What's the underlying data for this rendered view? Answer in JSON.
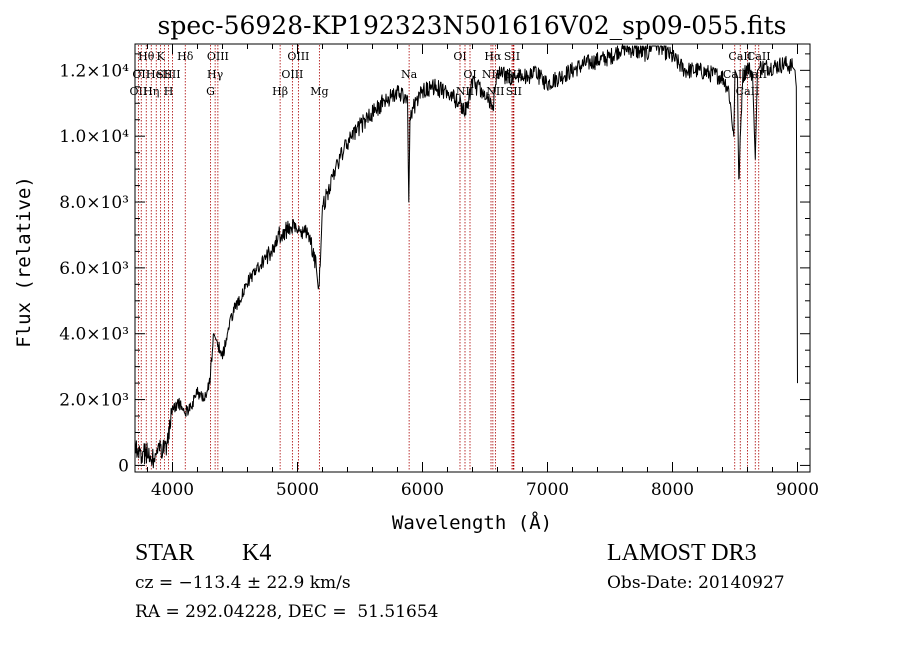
{
  "chart_data": {
    "type": "line",
    "title": "spec-56928-KP192323N501616V02_sp09-055.fits",
    "xlabel": "Wavelength (Å)",
    "ylabel": "Flux (relative)",
    "xlim": [
      3700,
      9100
    ],
    "ylim": [
      -200,
      12800
    ],
    "x_ticks": [
      {
        "value": 4000,
        "label": "4000"
      },
      {
        "value": 5000,
        "label": "5000"
      },
      {
        "value": 6000,
        "label": "6000"
      },
      {
        "value": 7000,
        "label": "7000"
      },
      {
        "value": 8000,
        "label": "8000"
      },
      {
        "value": 9000,
        "label": "9000"
      }
    ],
    "y_ticks": [
      {
        "value": 0,
        "label": "0"
      },
      {
        "value": 2000,
        "label": "2.0×10³"
      },
      {
        "value": 4000,
        "label": "4.0×10³"
      },
      {
        "value": 6000,
        "label": "6.0×10³"
      },
      {
        "value": 8000,
        "label": "8.0×10³"
      },
      {
        "value": 10000,
        "label": "1.0×10⁴"
      },
      {
        "value": 12000,
        "label": "1.2×10⁴"
      }
    ],
    "series": [
      {
        "name": "flux",
        "x": [
          3700,
          3750,
          3800,
          3850,
          3900,
          3950,
          4000,
          4050,
          4100,
          4150,
          4200,
          4250,
          4300,
          4330,
          4350,
          4400,
          4450,
          4500,
          4600,
          4700,
          4800,
          4850,
          4900,
          4950,
          5000,
          5050,
          5100,
          5150,
          5170,
          5200,
          5300,
          5400,
          5500,
          5600,
          5700,
          5800,
          5880,
          5890,
          5900,
          5950,
          6000,
          6100,
          6200,
          6300,
          6350,
          6400,
          6500,
          6560,
          6600,
          6700,
          6800,
          6900,
          7000,
          7100,
          7200,
          7300,
          7400,
          7500,
          7600,
          7700,
          7800,
          7850,
          7900,
          8000,
          8100,
          8200,
          8300,
          8400,
          8450,
          8490,
          8500,
          8520,
          8530,
          8560,
          8600,
          8640,
          8662,
          8680,
          8700,
          8800,
          8900,
          8960,
          8980,
          8990,
          9000
        ],
        "y": [
          500,
          300,
          400,
          150,
          500,
          600,
          1700,
          1900,
          1600,
          1800,
          2200,
          2000,
          2600,
          4000,
          3800,
          3300,
          4200,
          4800,
          5500,
          6000,
          6600,
          7000,
          7100,
          7300,
          7200,
          7100,
          6900,
          6000,
          5200,
          7800,
          9000,
          9800,
          10300,
          10700,
          11100,
          11300,
          11200,
          8000,
          10500,
          11100,
          11400,
          11500,
          11300,
          11000,
          10800,
          11600,
          11300,
          10800,
          11900,
          11800,
          11800,
          11900,
          11600,
          11800,
          12000,
          12200,
          12300,
          12400,
          12700,
          12600,
          12500,
          12900,
          12700,
          12400,
          12000,
          12000,
          11900,
          11800,
          11400,
          10000,
          12000,
          11800,
          8500,
          11800,
          12100,
          11900,
          9300,
          12000,
          12100,
          12100,
          12200,
          12100,
          12000,
          11500,
          2500
        ]
      }
    ],
    "line_markers": [
      {
        "wavelength": 3727,
        "label": "OII",
        "row": 2
      },
      {
        "wavelength": 3750,
        "label": "OII",
        "row": 1
      },
      {
        "wavelength": 3790,
        "label": "Hθ",
        "row": 0
      },
      {
        "wavelength": 3830,
        "label": "Hη",
        "row": 2
      },
      {
        "wavelength": 3870,
        "label": "HeI",
        "row": 1
      },
      {
        "wavelength": 3905,
        "label": "K",
        "row": 0
      },
      {
        "wavelength": 3935,
        "label": "SII",
        "row": 1
      },
      {
        "wavelength": 3968,
        "label": "H",
        "row": 2
      },
      {
        "wavelength": 4000,
        "label": "SII",
        "row": 1
      },
      {
        "wavelength": 4102,
        "label": "Hδ",
        "row": 0
      },
      {
        "wavelength": 4304,
        "label": "G",
        "row": 2
      },
      {
        "wavelength": 4341,
        "label": "Hγ",
        "row": 1
      },
      {
        "wavelength": 4363,
        "label": "OIII",
        "row": 0
      },
      {
        "wavelength": 4861,
        "label": "Hβ",
        "row": 2
      },
      {
        "wavelength": 4959,
        "label": "OIII",
        "row": 1
      },
      {
        "wavelength": 5007,
        "label": "OIII",
        "row": 0
      },
      {
        "wavelength": 5175,
        "label": "Mg",
        "row": 2
      },
      {
        "wavelength": 5893,
        "label": "Na",
        "row": 1
      },
      {
        "wavelength": 6300,
        "label": "OI",
        "row": 0
      },
      {
        "wavelength": 6340,
        "label": "NII",
        "row": 2
      },
      {
        "wavelength": 6380,
        "label": "OI",
        "row": 1
      },
      {
        "wavelength": 6548,
        "label": "NII",
        "row": 1
      },
      {
        "wavelength": 6563,
        "label": "Hα",
        "row": 0
      },
      {
        "wavelength": 6583,
        "label": "NII",
        "row": 2
      },
      {
        "wavelength": 6716,
        "label": "SII",
        "row": 0
      },
      {
        "wavelength": 6725,
        "label": "SII",
        "row": 1
      },
      {
        "wavelength": 6731,
        "label": "SII",
        "row": 2
      },
      {
        "wavelength": 8498,
        "label": "CaII",
        "row": 1
      },
      {
        "wavelength": 8542,
        "label": "CaII",
        "row": 0
      },
      {
        "wavelength": 8600,
        "label": "CaII",
        "row": 2
      },
      {
        "wavelength": 8662,
        "label": "CaII",
        "row": 1
      },
      {
        "wavelength": 8690,
        "label": "CaII",
        "row": 0
      }
    ],
    "marker_color": "#aa0000",
    "line_color": "#000000",
    "grid": false
  },
  "info": {
    "class_label": "STAR",
    "subclass": "K4",
    "survey": "LAMOST DR3",
    "redshift": "cz = −113.4 ± 22.9 km/s",
    "obs_date": "Obs-Date: 20140927",
    "coords": "RA = 292.04228, DEC =  51.51654"
  }
}
